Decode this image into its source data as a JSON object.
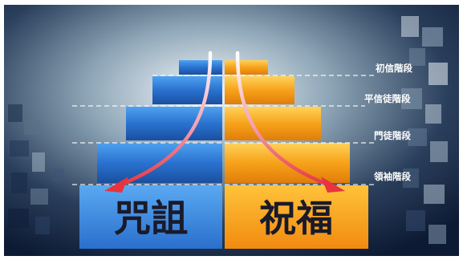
{
  "pyramid": {
    "left_title": "咒詛",
    "right_title": "祝福",
    "stages": [
      {
        "label": "初信階段"
      },
      {
        "label": "平信徒階段"
      },
      {
        "label": "門徒階段"
      },
      {
        "label": "領袖階段"
      }
    ]
  },
  "colors": {
    "curse_blue": "#2f7ad6",
    "blessing_orange": "#f7a21a",
    "arrow_red": "#e8343c",
    "dashed_line": "#ffffff"
  }
}
